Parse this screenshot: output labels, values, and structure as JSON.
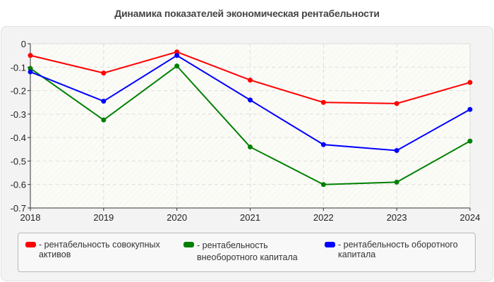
{
  "chart_data": {
    "type": "line",
    "title": "Динамика показателей экономическая рентабельности",
    "xlabel": "",
    "ylabel": "",
    "x": [
      "2018",
      "2019",
      "2020",
      "2021",
      "2022",
      "2023",
      "2024"
    ],
    "ylim": [
      -0.7,
      0
    ],
    "yticks": [
      "0",
      "-0.1",
      "-0.2",
      "-0.3",
      "-0.4",
      "-0.5",
      "-0.6",
      "-0.7"
    ],
    "grid": true,
    "legend_position": "bottom",
    "series": [
      {
        "name": "рентабельность совокупных активов",
        "color": "#ff0000",
        "values": [
          -0.05,
          -0.125,
          -0.035,
          -0.155,
          -0.25,
          -0.255,
          -0.165
        ]
      },
      {
        "name": "рентабельность внеоборотного капитала",
        "color": "#008000",
        "values": [
          -0.105,
          -0.325,
          -0.095,
          -0.44,
          -0.6,
          -0.59,
          -0.415
        ]
      },
      {
        "name": "рентабельность оборотного капитала",
        "color": "#0000ff",
        "values": [
          -0.12,
          -0.245,
          -0.05,
          -0.24,
          -0.43,
          -0.455,
          -0.28
        ]
      }
    ]
  },
  "legend": {
    "items": [
      {
        "label": "- рентабельность совокупных\nактивов",
        "color": "#ff0000"
      },
      {
        "label": "- рентабельность\nвнеоборотного капитала",
        "color": "#008000"
      },
      {
        "label": "- рентабельность оборотного\nкапитала",
        "color": "#0000ff"
      }
    ]
  }
}
